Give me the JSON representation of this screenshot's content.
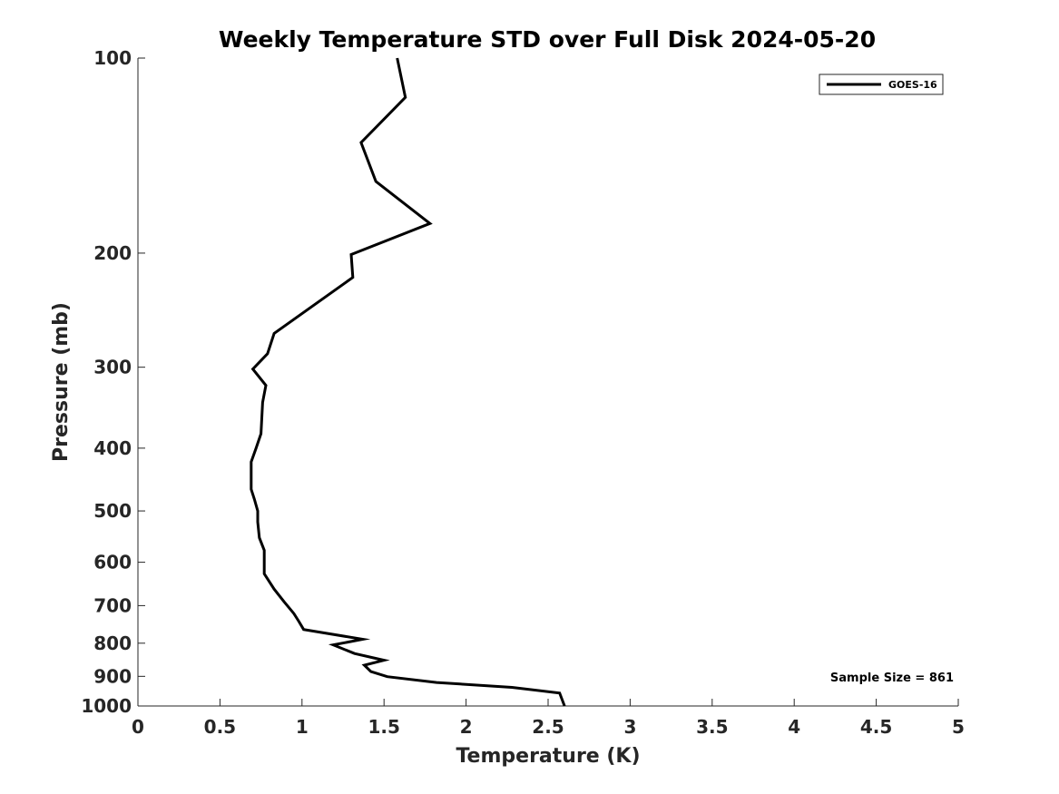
{
  "chart_data": {
    "type": "line",
    "title": "Weekly Temperature STD over Full Disk 2024-05-20",
    "xlabel": "Temperature (K)",
    "ylabel": "Pressure (mb)",
    "xlim": [
      0,
      5
    ],
    "ylim": [
      100,
      1000
    ],
    "y_scale": "log",
    "y_reversed": true,
    "x_ticks": [
      0,
      0.5,
      1,
      1.5,
      2,
      2.5,
      3,
      3.5,
      4,
      4.5,
      5
    ],
    "x_tick_labels": [
      "0",
      "0.5",
      "1",
      "1.5",
      "2",
      "2.5",
      "3",
      "3.5",
      "4",
      "4.5",
      "5"
    ],
    "y_ticks": [
      100,
      200,
      300,
      400,
      500,
      600,
      700,
      800,
      900,
      1000
    ],
    "y_tick_labels": [
      "100",
      "200",
      "300",
      "400",
      "500",
      "600",
      "700",
      "800",
      "900",
      "1000"
    ],
    "grid": false,
    "legend_position": "top-right",
    "annotation": "Sample Size = 861",
    "series": [
      {
        "name": "GOES-16",
        "color": "#000000",
        "x": [
          1.58,
          1.63,
          1.36,
          1.45,
          1.78,
          1.3,
          1.31,
          0.83,
          0.79,
          0.7,
          0.78,
          0.76,
          0.75,
          0.72,
          0.69,
          0.69,
          0.69,
          0.71,
          0.73,
          0.73,
          0.74,
          0.77,
          0.77,
          0.77,
          0.83,
          0.89,
          0.95,
          0.98,
          1.01,
          1.37,
          1.19,
          1.32,
          1.5,
          1.38,
          1.42,
          1.52,
          1.82,
          2.28,
          2.57,
          2.6
        ],
        "y": [
          100,
          115,
          135,
          155,
          180,
          201,
          218,
          266,
          286,
          302,
          320,
          340,
          380,
          400,
          420,
          440,
          463,
          480,
          500,
          520,
          550,
          575,
          600,
          625,
          660,
          690,
          720,
          740,
          762,
          789,
          805,
          830,
          850,
          865,
          885,
          901,
          920,
          936,
          955,
          1000
        ]
      }
    ]
  }
}
